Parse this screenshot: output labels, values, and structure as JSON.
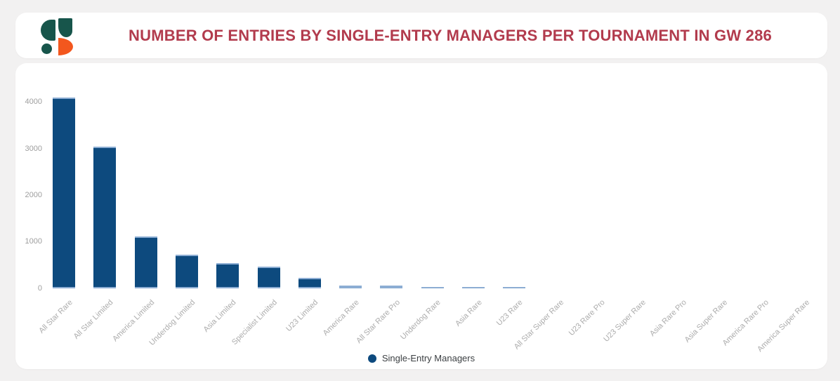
{
  "header": {
    "title": "NUMBER OF ENTRIES BY SINGLE-ENTRY MANAGERS PER TOURNAMENT IN GW 286"
  },
  "legend": {
    "label": "Single-Entry Managers"
  },
  "colors": {
    "title": "#b23b4d",
    "bar": "#0d4a7e",
    "bar_edge": "#8cadd3",
    "logo_teal": "#17554b",
    "logo_orange": "#f3571e",
    "page_bg": "#f2f1f1",
    "card_bg": "#ffffff",
    "y_axis_text": "#9e9e9e",
    "x_axis_text": "#acacac",
    "legend_text": "#3c4043"
  },
  "chart_data": {
    "type": "bar",
    "title": "NUMBER OF ENTRIES BY SINGLE-ENTRY MANAGERS PER TOURNAMENT IN GW 286",
    "categories": [
      "All Star Rare",
      "All Star Limited",
      "America Limited",
      "Underdog Limited",
      "Asia Limited",
      "Specialist Limited",
      "U23 Limited",
      "America Rare",
      "All Star Rare Pro",
      "Underdog Rare",
      "Asia Rare",
      "U23 Rare",
      "All Star Super Rare",
      "U23 Rare Pro",
      "U23 Super Rare",
      "Asia Rare Pro",
      "Asia Super Rare",
      "America Rare Pro",
      "America Super Rare"
    ],
    "series": [
      {
        "name": "Single-Entry Managers",
        "values": [
          4110,
          3040,
          1110,
          730,
          540,
          470,
          220,
          60,
          60,
          30,
          30,
          30,
          0,
          0,
          0,
          0,
          0,
          0,
          0
        ]
      }
    ],
    "xlabel": "",
    "ylabel": "",
    "y_ticks": [
      0,
      1000,
      2000,
      3000,
      4000
    ],
    "ylim": [
      0,
      4400
    ],
    "grid": false,
    "legend_position": "bottom",
    "x_label_rotation": -45
  }
}
